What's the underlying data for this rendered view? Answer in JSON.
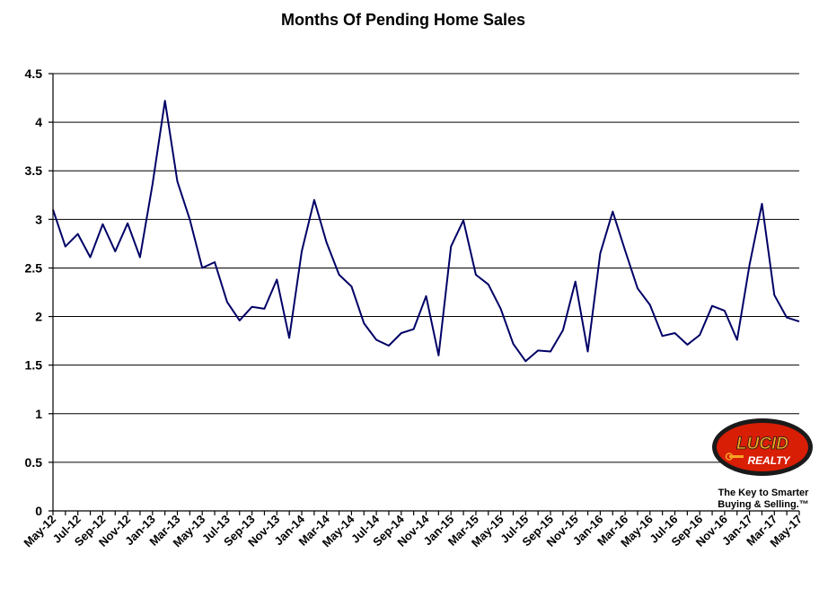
{
  "chart_data": {
    "type": "line",
    "title": "Months Of Pending Home Sales",
    "xlabel": "",
    "ylabel": "",
    "ylim": [
      0,
      4.5
    ],
    "yticks": [
      "0",
      "0.5",
      "1",
      "1.5",
      "2",
      "2.5",
      "3",
      "3.5",
      "4",
      "4.5"
    ],
    "grid": true,
    "legend": "none",
    "x": [
      "May-12",
      "Jun-12",
      "Jul-12",
      "Aug-12",
      "Sep-12",
      "Oct-12",
      "Nov-12",
      "Dec-12",
      "Jan-13",
      "Feb-13",
      "Mar-13",
      "Apr-13",
      "May-13",
      "Jun-13",
      "Jul-13",
      "Aug-13",
      "Sep-13",
      "Oct-13",
      "Nov-13",
      "Dec-13",
      "Jan-14",
      "Feb-14",
      "Mar-14",
      "Apr-14",
      "May-14",
      "Jun-14",
      "Jul-14",
      "Aug-14",
      "Sep-14",
      "Oct-14",
      "Nov-14",
      "Dec-14",
      "Jan-15",
      "Feb-15",
      "Mar-15",
      "Apr-15",
      "May-15",
      "Jun-15",
      "Jul-15",
      "Aug-15",
      "Sep-15",
      "Oct-15",
      "Nov-15",
      "Dec-15",
      "Jan-16",
      "Feb-16",
      "Mar-16",
      "Apr-16",
      "May-16",
      "Jun-16",
      "Jul-16",
      "Aug-16",
      "Sep-16",
      "Oct-16",
      "Nov-16",
      "Dec-16",
      "Jan-17",
      "Feb-17",
      "Mar-17",
      "Apr-17",
      "May-17"
    ],
    "xticks": [
      "May-12",
      "Jul-12",
      "Sep-12",
      "Nov-12",
      "Jan-13",
      "Mar-13",
      "May-13",
      "Jul-13",
      "Sep-13",
      "Nov-13",
      "Jan-14",
      "Mar-14",
      "May-14",
      "Jul-14",
      "Sep-14",
      "Nov-14",
      "Jan-15",
      "Mar-15",
      "May-15",
      "Jul-15",
      "Sep-15",
      "Nov-15",
      "Jan-16",
      "Mar-16",
      "May-16",
      "Jul-16",
      "Sep-16",
      "Nov-16",
      "Jan-17",
      "Mar-17",
      "May-17"
    ],
    "series": [
      {
        "values": [
          3.1,
          2.72,
          2.85,
          2.61,
          2.95,
          2.67,
          2.96,
          2.61,
          3.36,
          4.22,
          3.39,
          3.0,
          2.5,
          2.56,
          2.15,
          1.96,
          2.1,
          2.08,
          2.38,
          1.78,
          2.67,
          3.2,
          2.76,
          2.43,
          2.31,
          1.93,
          1.76,
          1.7,
          1.83,
          1.87,
          2.21,
          1.6,
          2.72,
          2.99,
          2.43,
          2.33,
          2.08,
          1.72,
          1.54,
          1.65,
          1.64,
          1.86,
          2.36,
          1.64,
          2.65,
          3.08,
          2.68,
          2.29,
          2.12,
          1.8,
          1.83,
          1.71,
          1.81,
          2.11,
          2.06,
          1.76,
          2.53,
          3.16,
          2.22,
          1.99,
          1.95
        ],
        "color": "#000066"
      }
    ]
  },
  "logo": {
    "word_top": "LUCID",
    "word_bottom": "REALTY",
    "tagline_1": "The Key to Smarter",
    "tagline_2": "Buying & Selling.™",
    "colors": {
      "red": "#d81e05",
      "gold": "#f5a623",
      "dark": "#1a1a1a"
    }
  }
}
